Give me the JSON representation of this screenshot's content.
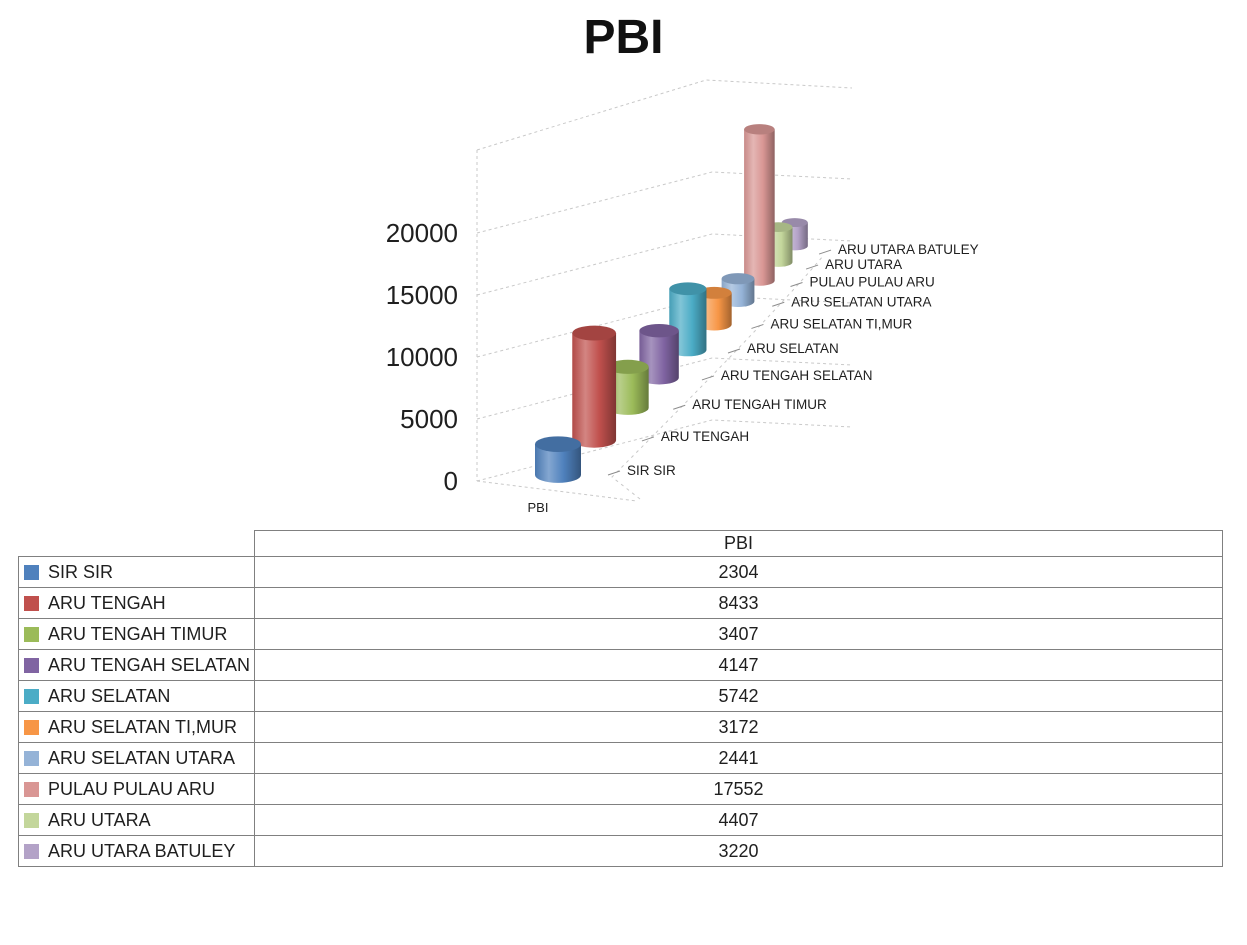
{
  "title": "PBI",
  "chart_data": {
    "type": "bar",
    "variant": "3d-cylinder",
    "title": "PBI",
    "xlabel": "PBI",
    "ylabel": "",
    "ylim": [
      0,
      20000
    ],
    "yticks": [
      0,
      5000,
      10000,
      15000,
      20000
    ],
    "grid": true,
    "legend_position": "category-labels-beside-points",
    "categories": [
      "SIR SIR",
      "ARU TENGAH",
      "ARU TENGAH TIMUR",
      "ARU TENGAH SELATAN",
      "ARU SELATAN",
      "ARU SELATAN TI,MUR",
      "ARU SELATAN UTARA",
      "PULAU PULAU ARU",
      "ARU UTARA",
      "ARU UTARA BATULEY"
    ],
    "series": [
      {
        "name": "PBI",
        "values": [
          2304,
          8433,
          3407,
          4147,
          5742,
          3172,
          2441,
          17552,
          4407,
          3220
        ]
      }
    ],
    "colors": [
      "#4F81BD",
      "#C0504D",
      "#9BBB59",
      "#8064A2",
      "#4BACC6",
      "#F79646",
      "#95B3D7",
      "#D99694",
      "#C3D69B",
      "#B3A2C7"
    ]
  },
  "data_table": {
    "header_label": "PBI"
  },
  "style": {
    "grid_color": "#C9C9C9",
    "tick_color": "#8C8C8C",
    "text_color": "#1F1F1F",
    "table_border": "#808080"
  }
}
